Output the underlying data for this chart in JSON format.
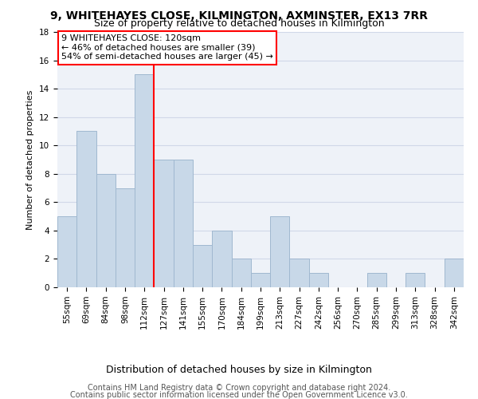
{
  "title": "9, WHITEHAYES CLOSE, KILMINGTON, AXMINSTER, EX13 7RR",
  "subtitle": "Size of property relative to detached houses in Kilmington",
  "xlabel": "Distribution of detached houses by size in Kilmington",
  "ylabel": "Number of detached properties",
  "categories": [
    "55sqm",
    "69sqm",
    "84sqm",
    "98sqm",
    "112sqm",
    "127sqm",
    "141sqm",
    "155sqm",
    "170sqm",
    "184sqm",
    "199sqm",
    "213sqm",
    "227sqm",
    "242sqm",
    "256sqm",
    "270sqm",
    "285sqm",
    "299sqm",
    "313sqm",
    "328sqm",
    "342sqm"
  ],
  "values": [
    5,
    11,
    8,
    7,
    15,
    9,
    9,
    3,
    4,
    2,
    1,
    5,
    2,
    1,
    0,
    0,
    1,
    0,
    1,
    0,
    2
  ],
  "bar_color": "#c8d8e8",
  "bar_edge_color": "#a0b8d0",
  "reference_line_index": 4.5,
  "reference_line_color": "red",
  "annotation_line1": "9 WHITEHAYES CLOSE: 120sqm",
  "annotation_line2": "← 46% of detached houses are smaller (39)",
  "annotation_line3": "54% of semi-detached houses are larger (45) →",
  "ylim": [
    0,
    18
  ],
  "yticks": [
    0,
    2,
    4,
    6,
    8,
    10,
    12,
    14,
    16,
    18
  ],
  "grid_color": "#d0d8e8",
  "background_color": "#eef2f8",
  "footer_line1": "Contains HM Land Registry data © Crown copyright and database right 2024.",
  "footer_line2": "Contains public sector information licensed under the Open Government Licence v3.0.",
  "title_fontsize": 10,
  "subtitle_fontsize": 9,
  "xlabel_fontsize": 9,
  "ylabel_fontsize": 8,
  "tick_fontsize": 7.5,
  "annotation_fontsize": 8,
  "footer_fontsize": 7
}
